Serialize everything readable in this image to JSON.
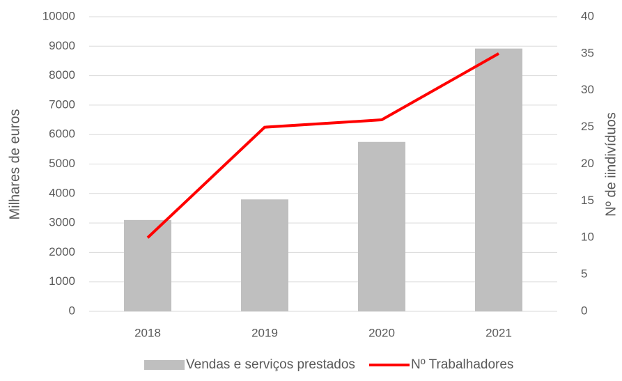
{
  "chart_data": {
    "type": "bar-line",
    "categories": [
      "2018",
      "2019",
      "2020",
      "2021"
    ],
    "series": [
      {
        "name": "Vendas e serviços prestados",
        "type": "bar",
        "color": "#bfbfbf",
        "values": [
          3100,
          3800,
          5750,
          8920
        ]
      },
      {
        "name": "Nº Trabalhadores",
        "type": "line",
        "color": "#ff0000",
        "axis": "y2",
        "values": [
          10,
          25,
          26,
          35
        ]
      }
    ],
    "ylabel": "Milhares de euros",
    "y2label": "Nº de iindivíduos",
    "ylim": [
      0,
      10000
    ],
    "yticks": [
      0,
      1000,
      2000,
      3000,
      4000,
      5000,
      6000,
      7000,
      8000,
      9000,
      10000
    ],
    "y2lim": [
      0,
      40
    ],
    "y2ticks": [
      0,
      5,
      10,
      15,
      20,
      25,
      30,
      35,
      40
    ],
    "grid": true,
    "legend": "bottom"
  }
}
